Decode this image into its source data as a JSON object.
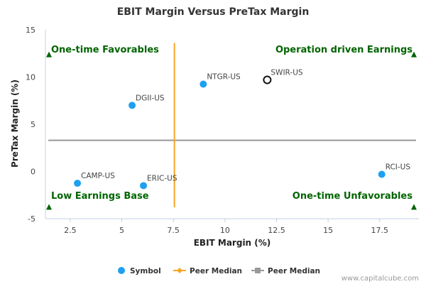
{
  "chart_data": {
    "type": "scatter",
    "title": "EBIT Margin Versus PreTax Margin",
    "xlabel": "EBIT Margin (%)",
    "ylabel": "PreTax Margin (%)",
    "xlim": [
      1.3,
      19.4
    ],
    "ylim": [
      -5,
      15
    ],
    "xticks": [
      "2.5",
      "5",
      "7.5",
      "10",
      "12.5",
      "15",
      "17.5"
    ],
    "yticks": [
      "15",
      "10",
      "5",
      "0",
      "-5"
    ],
    "points": [
      {
        "label": "CAMP-US",
        "x": 2.85,
        "y": -1.25,
        "style": "filled"
      },
      {
        "label": "DGII-US",
        "x": 5.5,
        "y": 7.0,
        "style": "filled"
      },
      {
        "label": "ERIC-US",
        "x": 6.05,
        "y": -1.5,
        "style": "filled"
      },
      {
        "label": "NTGR-US",
        "x": 8.95,
        "y": 9.25,
        "style": "filled"
      },
      {
        "label": "SWIR-US",
        "x": 12.05,
        "y": 9.7,
        "style": "highlight"
      },
      {
        "label": "RCI-US",
        "x": 17.6,
        "y": -0.3,
        "style": "filled"
      }
    ],
    "peer_median_x": 7.55,
    "peer_median_y": 3.3,
    "quadrants": {
      "top_left": "One-time Favorables",
      "top_right": "Operation driven Earnings",
      "bottom_left": "Low Earnings Base",
      "bottom_right": "One-time Unfavorables"
    },
    "legend": {
      "position": "bottom",
      "items": [
        {
          "label": "Symbol",
          "color": "#1ea0f0"
        },
        {
          "label": "Peer Median",
          "color": "#f5a623"
        },
        {
          "label": "Peer Median",
          "color": "#999999"
        }
      ]
    },
    "colors": {
      "point": "#1ea0f0",
      "x_median": "#f5a623",
      "y_median": "#999999",
      "quadrant": "#006400",
      "axis": "#c0d0e0"
    }
  },
  "credit": "www.capitalcube.com"
}
